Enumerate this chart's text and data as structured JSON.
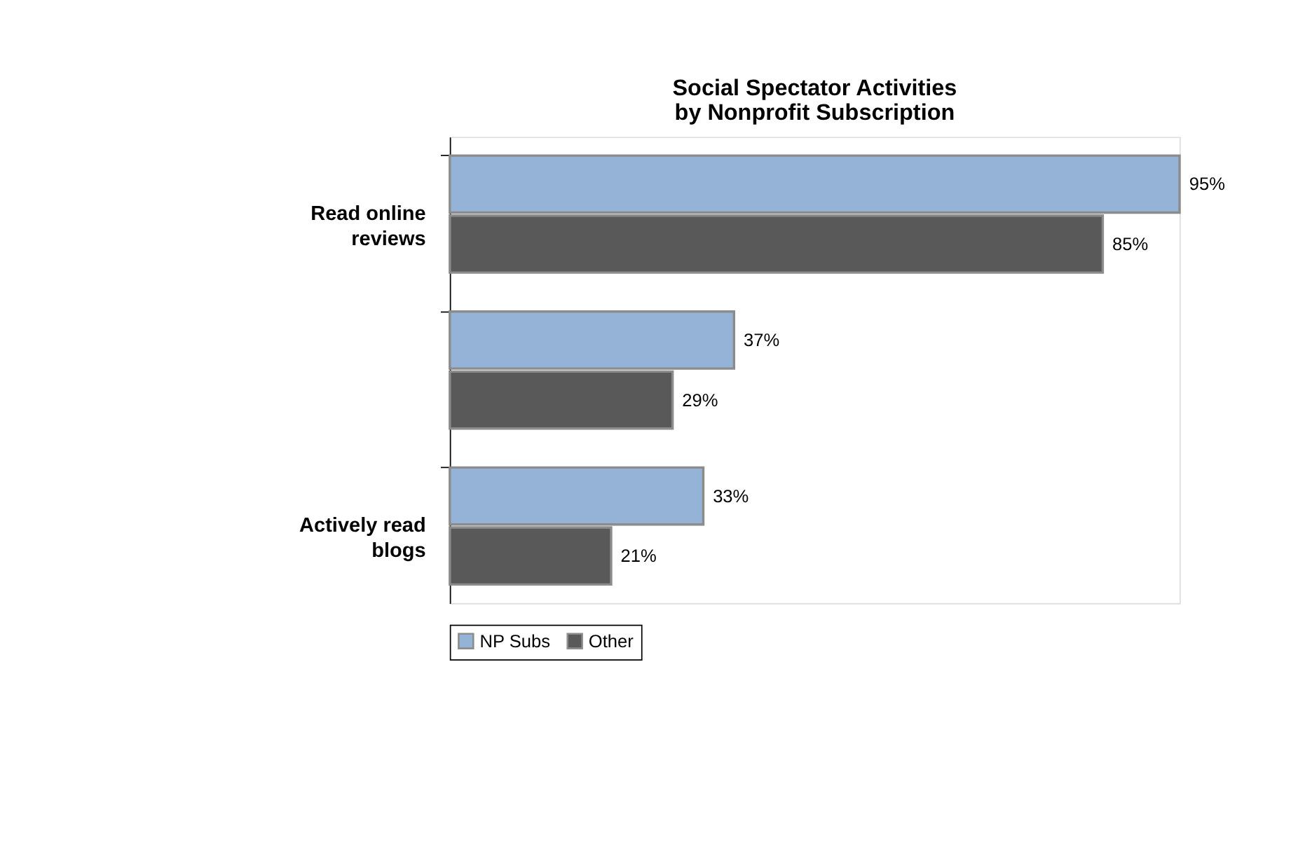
{
  "chart_data": {
    "type": "bar",
    "orientation": "horizontal",
    "title": "Social Spectator Activities by Nonprofit Subscription",
    "categories": [
      "Read online reviews",
      null,
      "Actively read blogs"
    ],
    "series": [
      {
        "name": "NP Subs",
        "color": "#95b3d7",
        "values": [
          95,
          37,
          33
        ],
        "value_labels": [
          "95%",
          "37%",
          "33%"
        ]
      },
      {
        "name": "Other",
        "color": "#595959",
        "values": [
          85,
          29,
          21
        ],
        "value_labels": [
          "85%",
          "29%",
          "21%"
        ]
      }
    ],
    "legend": "bottom",
    "grid": false
  }
}
